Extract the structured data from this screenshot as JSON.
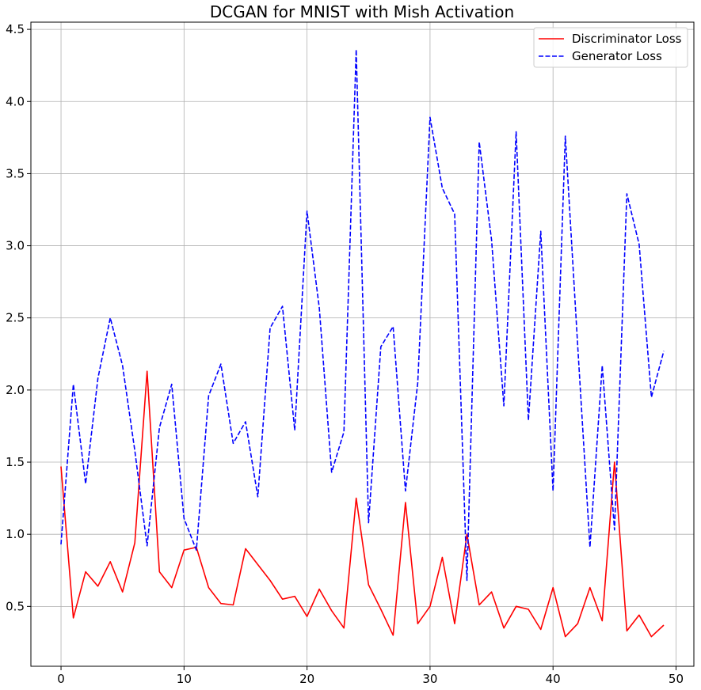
{
  "chart_data": {
    "type": "line",
    "title": "DCGAN for MNIST with Mish Activation",
    "xlabel": "",
    "ylabel": "",
    "xlim": [
      -2.45,
      51.45
    ],
    "ylim": [
      0.085,
      4.55
    ],
    "xticks": [
      0,
      10,
      20,
      30,
      40,
      50
    ],
    "yticks": [
      0.5,
      1.0,
      1.5,
      2.0,
      2.5,
      3.0,
      3.5,
      4.0,
      4.5
    ],
    "xtick_labels": [
      "0",
      "10",
      "20",
      "30",
      "40",
      "50"
    ],
    "ytick_labels": [
      "0.5",
      "1.0",
      "1.5",
      "2.0",
      "2.5",
      "3.0",
      "3.5",
      "4.0",
      "4.5"
    ],
    "grid": true,
    "legend_position": "top-right",
    "x": [
      0,
      1,
      2,
      3,
      4,
      5,
      6,
      7,
      8,
      9,
      10,
      11,
      12,
      13,
      14,
      15,
      16,
      17,
      18,
      19,
      20,
      21,
      22,
      23,
      24,
      25,
      26,
      27,
      28,
      29,
      30,
      31,
      32,
      33,
      34,
      35,
      36,
      37,
      38,
      39,
      40,
      41,
      42,
      43,
      44,
      45,
      46,
      47,
      48,
      49
    ],
    "series": [
      {
        "name": "Discriminator Loss",
        "color": "#ff0000",
        "style": "solid",
        "values": [
          1.47,
          0.42,
          0.74,
          0.64,
          0.81,
          0.6,
          0.94,
          2.13,
          0.74,
          0.63,
          0.89,
          0.91,
          0.63,
          0.52,
          0.51,
          0.9,
          0.79,
          0.68,
          0.55,
          0.57,
          0.43,
          0.62,
          0.47,
          0.35,
          1.25,
          0.65,
          0.48,
          0.3,
          1.22,
          0.38,
          0.5,
          0.84,
          0.38,
          1.0,
          0.51,
          0.6,
          0.35,
          0.5,
          0.48,
          0.34,
          0.63,
          0.29,
          0.38,
          0.63,
          0.4,
          1.5,
          0.33,
          0.44,
          0.29,
          0.37
        ]
      },
      {
        "name": "Generator Loss",
        "color": "#0000ff",
        "style": "dashed",
        "values": [
          0.93,
          2.04,
          1.35,
          2.08,
          2.5,
          2.17,
          1.58,
          0.92,
          1.74,
          2.04,
          1.11,
          0.89,
          1.96,
          2.18,
          1.63,
          1.78,
          1.26,
          2.43,
          2.58,
          1.72,
          3.24,
          2.57,
          1.43,
          1.71,
          4.36,
          1.08,
          2.3,
          2.44,
          1.3,
          2.05,
          3.89,
          3.4,
          3.22,
          0.68,
          3.72,
          3.04,
          1.89,
          3.79,
          1.79,
          3.1,
          1.3,
          3.76,
          2.31,
          0.91,
          2.17,
          1.03,
          3.36,
          3.01,
          1.95,
          2.27
        ]
      }
    ]
  }
}
